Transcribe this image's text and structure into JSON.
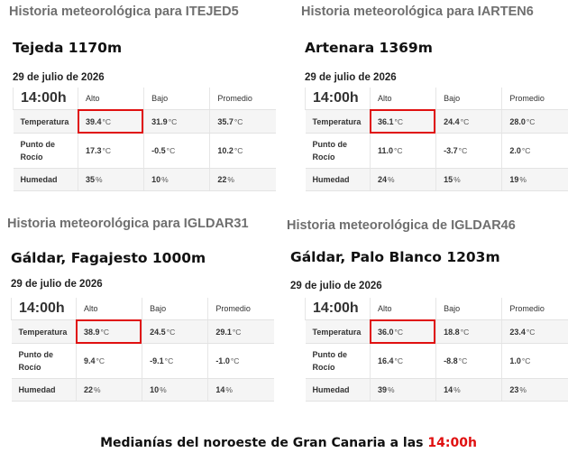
{
  "units": {
    "temp": "°C",
    "pct": "%"
  },
  "colors": {
    "highlight": "#e01010",
    "header_gray": "#6f6f6f"
  },
  "panels": [
    {
      "header": "Historia meteorológica para ITEJED5",
      "station": "Tejeda 1170m",
      "date": "29 de julio de 2026",
      "time": "14:00h",
      "columns": [
        "Alto",
        "Bajo",
        "Promedio"
      ],
      "rows": {
        "temp": {
          "label": "Temperatura",
          "values": [
            "39.4",
            "31.9",
            "35.7"
          ]
        },
        "dew": {
          "label1": "Punto de",
          "label2": "Rocío",
          "values": [
            "17.3",
            "-0.5",
            "10.2"
          ]
        },
        "hum": {
          "label": "Humedad",
          "values": [
            "35",
            "10",
            "22"
          ]
        }
      }
    },
    {
      "header": "Historia meteorológica para IARTEN6",
      "station": "Artenara 1369m",
      "date": "29 de julio de 2026",
      "time": "14:00h",
      "columns": [
        "Alto",
        "Bajo",
        "Promedio"
      ],
      "rows": {
        "temp": {
          "label": "Temperatura",
          "values": [
            "36.1",
            "24.4",
            "28.0"
          ]
        },
        "dew": {
          "label1": "Punto de",
          "label2": "Rocío",
          "values": [
            "11.0",
            "-3.7",
            "2.0"
          ]
        },
        "hum": {
          "label": "Humedad",
          "values": [
            "24",
            "15",
            "19"
          ]
        }
      }
    },
    {
      "header": "Historia meteorológica para IGLDAR31",
      "station": "Gáldar, Fagajesto 1000m",
      "date": "29 de julio de 2026",
      "time": "14:00h",
      "columns": [
        "Alto",
        "Bajo",
        "Promedio"
      ],
      "rows": {
        "temp": {
          "label": "Temperatura",
          "values": [
            "38.9",
            "24.5",
            "29.1"
          ]
        },
        "dew": {
          "label1": "Punto de",
          "label2": "Rocío",
          "values": [
            "9.4",
            "-9.1",
            "-1.0"
          ]
        },
        "hum": {
          "label": "Humedad",
          "values": [
            "22",
            "10",
            "14"
          ]
        }
      }
    },
    {
      "header": "Historia meteorológica de IGLDAR46",
      "station": "Gáldar, Palo Blanco 1203m",
      "date": "29 de julio de 2026",
      "time": "14:00h",
      "columns": [
        "Alto",
        "Bajo",
        "Promedio"
      ],
      "rows": {
        "temp": {
          "label": "Temperatura",
          "values": [
            "36.0",
            "18.8",
            "23.4"
          ]
        },
        "dew": {
          "label1": "Punto de",
          "label2": "Rocío",
          "values": [
            "16.4",
            "-8.8",
            "1.0"
          ]
        },
        "hum": {
          "label": "Humedad",
          "values": [
            "39",
            "14",
            "23"
          ]
        }
      }
    }
  ],
  "caption": {
    "text": "Medianías del noroeste de Gran Canaria a las ",
    "time": "14:00h"
  }
}
